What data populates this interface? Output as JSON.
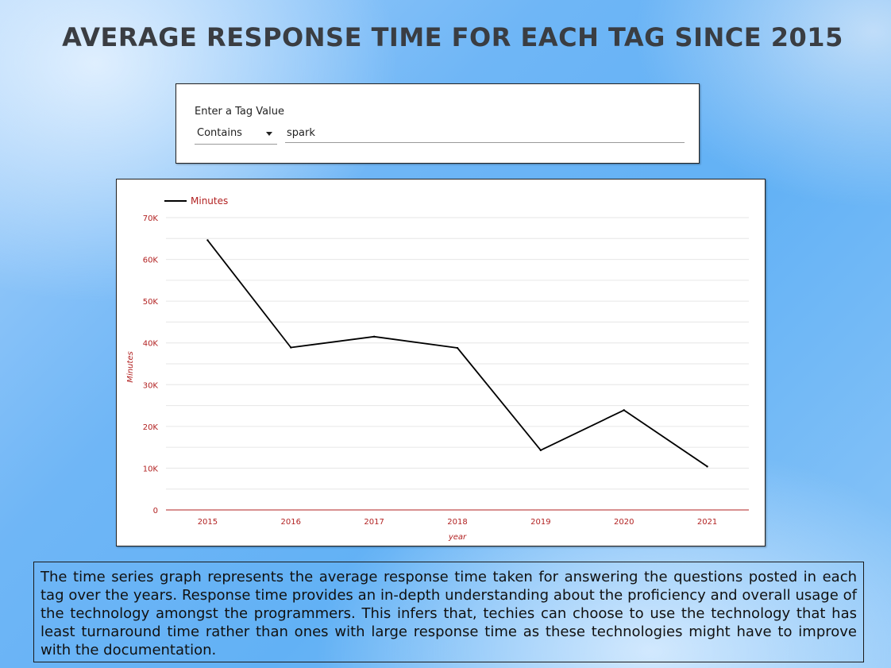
{
  "page": {
    "title": "AVERAGE RESPONSE TIME FOR EACH TAG SINCE 2015"
  },
  "filter": {
    "label": "Enter a Tag Value",
    "match_mode": "Contains",
    "value": "spark"
  },
  "description": "The time series graph represents the average response time taken for answering the questions posted in each tag over the years. Response time provides an in-depth understanding about the proficiency and overall usage of the technology amongst the programmers. This infers that, techies can choose to use the technology that has least turnaround time rather than ones with large response time as these technologies might have to improve with the documentation.",
  "colors": {
    "line": "#000000",
    "axis_text": "#b22222",
    "gridline": "#e6e6e6",
    "baseline": "#b22222",
    "title": "#3a3d42"
  },
  "chart_data": {
    "type": "line",
    "x": [
      "2015",
      "2016",
      "2017",
      "2018",
      "2019",
      "2020",
      "2021"
    ],
    "series": [
      {
        "name": "Minutes",
        "values": [
          64600,
          38900,
          41500,
          38800,
          14300,
          23900,
          10400
        ]
      }
    ],
    "xlabel": "year",
    "ylabel": "Minutes",
    "ylim": [
      0,
      70000
    ],
    "yticks": [
      0,
      10000,
      20000,
      30000,
      40000,
      50000,
      60000,
      70000
    ],
    "ytick_labels": [
      "0",
      "10K",
      "20K",
      "30K",
      "40K",
      "50K",
      "60K",
      "70K"
    ],
    "grid": true,
    "legend": "top-left"
  }
}
